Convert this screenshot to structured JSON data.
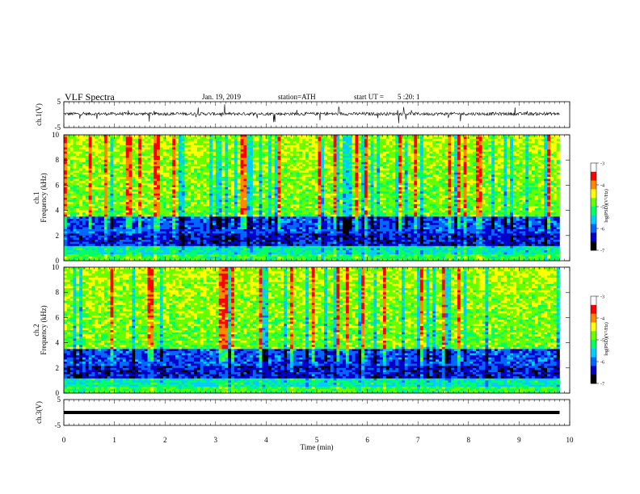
{
  "header": {
    "title": "VLF Spectra",
    "date": "Jan. 19, 2019",
    "station": "station=ATH",
    "start_label": "start UT =",
    "start_time": "5 :20: 1"
  },
  "chart_data": [
    {
      "type": "line",
      "id": "ch1-waveform",
      "ylabel": "ch.1(V)",
      "yticks": [
        "5",
        "-5"
      ],
      "ylim": [
        -5,
        5
      ],
      "xlim": [
        0,
        10
      ],
      "x_end": 9.8,
      "baseline": 0.3,
      "noise_amplitude": 0.6,
      "spike_amplitude": 3.5
    },
    {
      "type": "heatmap",
      "id": "ch1-spectrogram",
      "ylabel_channel": "ch.1",
      "ylabel": "Frequency (kHz)",
      "yticks": [
        "0",
        "2",
        "4",
        "6",
        "8",
        "10"
      ],
      "ylim": [
        0,
        10
      ],
      "xlim": [
        0,
        10
      ],
      "x_end": 9.8,
      "colorbar": {
        "label": "log(PSD)(V²/Hz)",
        "ticks": [
          "-3",
          "-4",
          "-5",
          "-6",
          "-7"
        ],
        "range": [
          -7,
          -3
        ]
      }
    },
    {
      "type": "heatmap",
      "id": "ch2-spectrogram",
      "ylabel_channel": "ch.2",
      "ylabel": "Frequency (kHz)",
      "yticks": [
        "0",
        "2",
        "4",
        "6",
        "8",
        "10"
      ],
      "ylim": [
        0,
        10
      ],
      "xlim": [
        0,
        10
      ],
      "x_end": 9.8,
      "colorbar": {
        "label": "log(PSD)(V²/Hz)",
        "ticks": [
          "-3",
          "-4",
          "-5",
          "-6",
          "-7"
        ],
        "range": [
          -7,
          -3
        ]
      }
    },
    {
      "type": "line",
      "id": "ch3-waveform",
      "ylabel": "ch.3(V)",
      "yticks": [
        "5",
        "-5"
      ],
      "ylim": [
        -5,
        5
      ],
      "xlim": [
        0,
        10
      ],
      "x_end": 9.8,
      "value": 0
    }
  ],
  "xaxis": {
    "label": "Time (min)",
    "ticks": [
      "0",
      "1",
      "2",
      "3",
      "4",
      "5",
      "6",
      "7",
      "8",
      "9",
      "10"
    ]
  },
  "colors": {
    "scale": [
      "#000000",
      "#0000c8",
      "#0066ff",
      "#00ccff",
      "#00ff66",
      "#66ff00",
      "#ffff00",
      "#ff8800",
      "#ff0000",
      "#ffffff"
    ]
  }
}
